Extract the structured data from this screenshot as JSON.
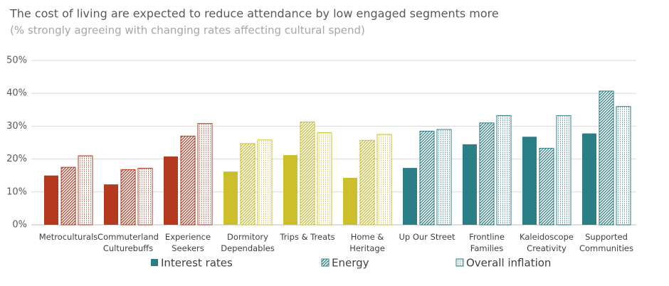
{
  "chart_data": {
    "type": "bar",
    "title": "The cost of living are expected to reduce attendance by low engaged segments more",
    "subtitle": "(% strongly agreeing with changing rates affecting cultural spend)",
    "categories": [
      "Metroculturals",
      "Commuterland\nCulturebuffs",
      "Experience\nSeekers",
      "Dormitory\nDependables",
      "Trips & Treats",
      "Home &\nHeritage",
      "Up Our Street",
      "Frontline\nFamilies",
      "Kaleidoscope\nCreativity",
      "Supported\nCommunities"
    ],
    "category_colors": [
      "#b5391f",
      "#b5391f",
      "#b5391f",
      "#cdbf2b",
      "#cdbf2b",
      "#cdbf2b",
      "#2a7f86",
      "#2a7f86",
      "#2a7f86",
      "#2a7f86"
    ],
    "series": [
      {
        "name": "Interest rates",
        "color": "#2a7f86",
        "pattern": "solid",
        "values": [
          15,
          12.3,
          20.8,
          16.2,
          21.2,
          14.3,
          17.3,
          24.5,
          26.8,
          27.8
        ]
      },
      {
        "name": "Energy",
        "color": "#2a7f86",
        "pattern": "hatch",
        "values": [
          17.5,
          16.8,
          27,
          24.7,
          31.3,
          25.7,
          28.5,
          31,
          23.3,
          40.7
        ]
      },
      {
        "name": "Overall inflation",
        "color": "#2a7f86",
        "pattern": "dots",
        "values": [
          21,
          17.2,
          30.8,
          25.8,
          28,
          27.5,
          29,
          33.2,
          33.2,
          36
        ]
      }
    ],
    "ylim": [
      0,
      50
    ],
    "yticks": [
      {
        "value": 0,
        "label": "0%"
      },
      {
        "value": 10,
        "label": "10%"
      },
      {
        "value": 20,
        "label": "20%"
      },
      {
        "value": 30,
        "label": "30%"
      },
      {
        "value": 40,
        "label": "40%"
      },
      {
        "value": 50,
        "label": "50%"
      }
    ],
    "grid": true
  }
}
